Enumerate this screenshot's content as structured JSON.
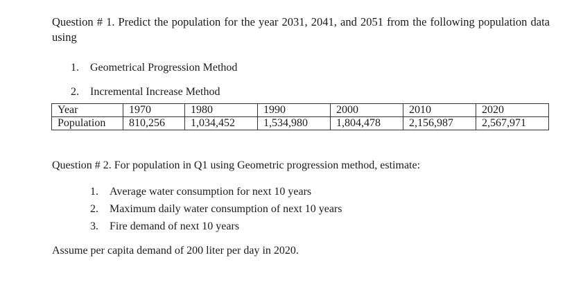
{
  "question1": {
    "text": "Question # 1. Predict the population for the year 2031, 2041, and 2051 from the following population data using",
    "methods": [
      {
        "num": "1.",
        "label": "Geometrical Progression Method"
      },
      {
        "num": "2.",
        "label": "Incremental Increase Method"
      }
    ],
    "table": {
      "year_label": "Year",
      "population_label": "Population",
      "years": [
        "1970",
        "1980",
        "1990",
        "2000",
        "2010",
        "2020"
      ],
      "populations": [
        "810,256",
        "1,034,452",
        "1,534,980",
        "1,804,478",
        "2,156,987",
        "2,567,971"
      ]
    }
  },
  "question2": {
    "text": "Question # 2. For population in Q1 using Geometric progression method, estimate:",
    "items": [
      {
        "num": "1.",
        "label": "Average water consumption for next 10 years"
      },
      {
        "num": "2.",
        "label": "Maximum daily water consumption of next 10 years"
      },
      {
        "num": "3.",
        "label": "Fire demand of next 10 years"
      }
    ]
  },
  "assumption": "Assume per capita demand of 200 liter per day in 2020."
}
